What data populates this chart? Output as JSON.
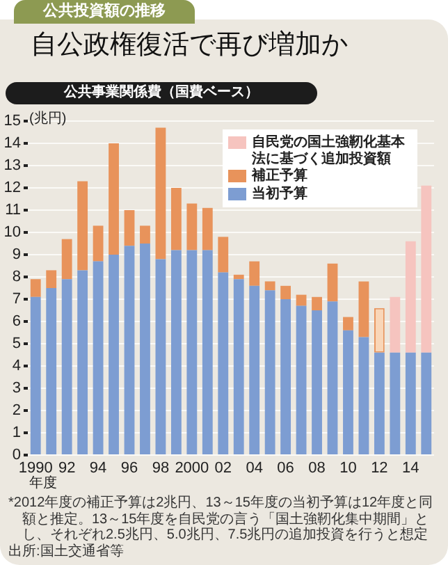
{
  "chart_data": {
    "type": "bar",
    "title": "自公政権復活で再び増加か",
    "subtitle": "公共事業関係費（国費ベース）",
    "ylabel": "(兆円)",
    "xlabel": "年度",
    "annotations": [
      "公共投資額の推移",
      "*2012年度の補正予算は2兆円、13～15年度の当初予算は12年度と同額と推定。13～15年度を自民党の言う「国土強靭化集中期間」とし、それぞれ2.5兆円、5.0兆円、7.5兆円の追加投資を行うと想定",
      "出所:国土交通省等"
    ],
    "categories": [
      "1990",
      null,
      "92",
      null,
      "94",
      null,
      "96",
      null,
      "98",
      null,
      "2000",
      null,
      "02",
      null,
      "04",
      null,
      "06",
      null,
      "08",
      null,
      "10",
      null,
      "12",
      null,
      "14",
      null
    ],
    "series": [
      {
        "name": "当初予算",
        "color": "#7d9dd2",
        "values": [
          7.1,
          7.5,
          7.9,
          8.3,
          8.7,
          9.0,
          9.4,
          9.5,
          8.8,
          9.2,
          9.2,
          9.2,
          8.2,
          7.9,
          7.6,
          7.4,
          7.0,
          6.7,
          6.5,
          6.9,
          5.6,
          5.3,
          4.6,
          4.6,
          4.6,
          4.6
        ]
      },
      {
        "name": "補正予算",
        "color": "#e8935b",
        "colors": [
          "#e8935b",
          "#e8935b",
          "#e8935b",
          "#e8935b",
          "#e8935b",
          "#e8935b",
          "#e8935b",
          "#e8935b",
          "#e8935b",
          "#e8935b",
          "#e8935b",
          "#e8935b",
          "#e8935b",
          "#e8935b",
          "#e8935b",
          "#e8935b",
          "#e8935b",
          "#e8935b",
          "#e8935b",
          "#e8935b",
          "#e8935b",
          "#e8935b",
          "#f9d6b8",
          "#e8935b",
          "#e8935b",
          "#e8935b"
        ],
        "values": [
          0.8,
          0.8,
          1.8,
          4.0,
          1.6,
          5.0,
          1.6,
          0.8,
          5.9,
          2.8,
          2.1,
          1.9,
          1.6,
          0.2,
          1.1,
          0.4,
          0.6,
          0.5,
          0.6,
          1.7,
          0.6,
          2.5,
          2.0,
          null,
          null,
          null
        ]
      },
      {
        "name": "自民党の国土強靭化基本法に基づく追加投資額",
        "color": "#f6c4bf",
        "values": [
          null,
          null,
          null,
          null,
          null,
          null,
          null,
          null,
          null,
          null,
          null,
          null,
          null,
          null,
          null,
          null,
          null,
          null,
          null,
          null,
          null,
          null,
          null,
          2.5,
          5.0,
          7.5
        ]
      }
    ],
    "stacked": true,
    "ylim": [
      0,
      15
    ],
    "yticks": [
      0,
      1,
      2,
      3,
      4,
      5,
      6,
      7,
      8,
      9,
      10,
      11,
      12,
      13,
      14,
      15
    ],
    "grid": "y",
    "legend": "top right"
  }
}
